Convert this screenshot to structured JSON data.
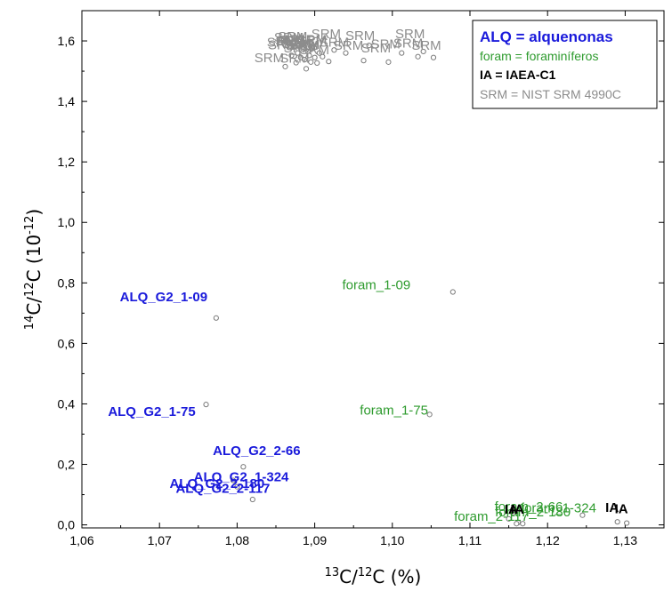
{
  "chart_data": {
    "type": "scatter",
    "title": "",
    "xlabel": {
      "sup": "13",
      "main": "C/",
      "sup2": "12",
      "tail": "C (%)"
    },
    "ylabel": {
      "sup": "14",
      "main": "C/",
      "sup2": "12",
      "tail": "C (10",
      "exp": "-12",
      "close": ")"
    },
    "xlim": [
      1.06,
      1.135
    ],
    "ylim": [
      -0.01,
      1.7
    ],
    "x_ticks": [
      1.06,
      1.07,
      1.08,
      1.09,
      1.1,
      1.11,
      1.12,
      1.13
    ],
    "x_tick_labels": [
      "1,06",
      "1,07",
      "1,08",
      "1,09",
      "1,10",
      "1,11",
      "1,12",
      "1,13"
    ],
    "y_ticks": [
      0.0,
      0.2,
      0.4,
      0.6,
      0.8,
      1.0,
      1.2,
      1.4,
      1.6
    ],
    "y_tick_labels": [
      "0,0",
      "0,2",
      "0,4",
      "0,6",
      "0,8",
      "1,0",
      "1,2",
      "1,4",
      "1,6"
    ],
    "grid": false,
    "legend_position": "top-right",
    "legend": [
      {
        "text": "ALQ = alquenonas",
        "color": "#1a1adb",
        "bold": true,
        "size": "large"
      },
      {
        "text": "foram = foraminíferos",
        "color": "#2e9b2e",
        "bold": false,
        "size": "normal"
      },
      {
        "text": "IA = IAEA-C1",
        "color": "#000000",
        "bold": true,
        "size": "normal"
      },
      {
        "text": "SRM = NIST SRM 4990C",
        "color": "#8c8c8c",
        "bold": false,
        "size": "normal"
      }
    ],
    "series": [
      {
        "name": "ALQ",
        "color": "#1a1adb",
        "bold": true,
        "points": [
          {
            "x": 1.0773,
            "y": 0.684,
            "label": "ALQ_G2_1-09"
          },
          {
            "x": 1.076,
            "y": 0.398,
            "label": "ALQ_G2_1-75"
          },
          {
            "x": 1.0808,
            "y": 0.192,
            "label": "ALQ_G2_2-66"
          },
          {
            "x": 1.0795,
            "y": 0.147,
            "label": "ALQ_G2_1-324"
          },
          {
            "x": 1.08,
            "y": 0.126,
            "label": "ALQ_G2_2-117"
          },
          {
            "x": 1.082,
            "y": 0.084,
            "label": "ALQ_G2_2-180"
          }
        ]
      },
      {
        "name": "foram",
        "color": "#2e9b2e",
        "bold": false,
        "points": [
          {
            "x": 1.1078,
            "y": 0.77,
            "label": "foram_1-09"
          },
          {
            "x": 1.1048,
            "y": 0.365,
            "label": "foram_1-75"
          },
          {
            "x": 1.1155,
            "y": 0.04,
            "label": "foram_2-66"
          },
          {
            "x": 1.115,
            "y": 0.02,
            "label": "foram_2-180"
          },
          {
            "x": 1.1162,
            "y": 0.008,
            "label": "foram_2-117"
          },
          {
            "x": 1.1245,
            "y": 0.032,
            "label": "foram_1-324"
          }
        ]
      },
      {
        "name": "IA",
        "color": "#000000",
        "bold": true,
        "points": [
          {
            "x": 1.116,
            "y": 0.004,
            "label": "IA"
          },
          {
            "x": 1.1168,
            "y": 0.004,
            "label": "IA"
          },
          {
            "x": 1.129,
            "y": 0.01,
            "label": "IA"
          },
          {
            "x": 1.1302,
            "y": 0.006,
            "label": "IA"
          }
        ]
      },
      {
        "name": "SRM",
        "color": "#8c8c8c",
        "bold": false,
        "points": [
          {
            "x": 1.0862,
            "y": 1.515,
            "label": "SRM"
          },
          {
            "x": 1.087,
            "y": 1.552,
            "label": "SRM"
          },
          {
            "x": 1.0876,
            "y": 1.528,
            "label": "SRM"
          },
          {
            "x": 1.0878,
            "y": 1.56,
            "label": "SRM"
          },
          {
            "x": 1.0882,
            "y": 1.545,
            "label": "SRM"
          },
          {
            "x": 1.0885,
            "y": 1.573,
            "label": "SRM"
          },
          {
            "x": 1.0887,
            "y": 1.538,
            "label": "SRM"
          },
          {
            "x": 1.0889,
            "y": 1.508,
            "label": "SRM"
          },
          {
            "x": 1.0891,
            "y": 1.565,
            "label": "SRM"
          },
          {
            "x": 1.0893,
            "y": 1.552,
            "label": "SRM"
          },
          {
            "x": 1.0895,
            "y": 1.53,
            "label": "SRM"
          },
          {
            "x": 1.0897,
            "y": 1.575,
            "label": "SRM"
          },
          {
            "x": 1.09,
            "y": 1.545,
            "label": "SRM"
          },
          {
            "x": 1.0903,
            "y": 1.527,
            "label": "SRM"
          },
          {
            "x": 1.0906,
            "y": 1.56,
            "label": "SRM"
          },
          {
            "x": 1.091,
            "y": 1.548,
            "label": "SRM"
          },
          {
            "x": 1.0918,
            "y": 1.532,
            "label": "SRM"
          },
          {
            "x": 1.0925,
            "y": 1.57,
            "label": "SRM"
          },
          {
            "x": 1.094,
            "y": 1.56,
            "label": "SRM"
          },
          {
            "x": 1.0963,
            "y": 1.535,
            "label": "SRM"
          },
          {
            "x": 1.097,
            "y": 1.585,
            "label": "SRM"
          },
          {
            "x": 1.0995,
            "y": 1.53,
            "label": "SRM"
          },
          {
            "x": 1.1012,
            "y": 1.56,
            "label": "SRM"
          },
          {
            "x": 1.1033,
            "y": 1.548,
            "label": "SRM"
          },
          {
            "x": 1.104,
            "y": 1.565,
            "label": "SRM"
          },
          {
            "x": 1.1053,
            "y": 1.545,
            "label": "SRM"
          }
        ]
      }
    ]
  }
}
